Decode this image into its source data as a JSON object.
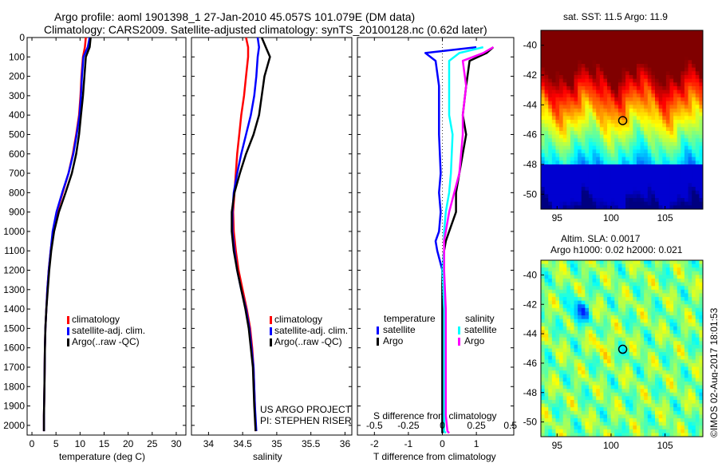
{
  "header": {
    "title_line1": "Argo profile: aoml 1901398_1 27-Jan-2010 45.057S 101.079E (DM data)",
    "title_line2": "Climatology: CARS2009. Satellite-adjusted climatology: synTS_20100128.nc (0.62d later)"
  },
  "credits": {
    "project": "US ARGO PROJECT",
    "pi": "PI: STEPHEN RISER",
    "stamp": "©IMOS 02-Aug-2017 18:01:53"
  },
  "colors": {
    "climatology": "#ff0000",
    "satellite": "#0000ff",
    "argo": "#000000",
    "sal_satellite": "#00ffff",
    "sal_argo": "#ff00ff"
  },
  "chart_data": [
    {
      "type": "line",
      "name": "temperature profile",
      "xlabel": "temperature (deg C)",
      "ylabel": "",
      "xlim": [
        -1,
        32
      ],
      "ylim": [
        2050,
        0
      ],
      "xticks": [
        0,
        5,
        10,
        15,
        20,
        25,
        30
      ],
      "yticks": [
        0,
        100,
        200,
        300,
        400,
        500,
        600,
        700,
        800,
        900,
        1000,
        1100,
        1200,
        1300,
        1400,
        1500,
        1600,
        1700,
        1800,
        1900,
        2000
      ],
      "legend": [
        "climatology",
        "satellite-adj. clim.",
        "Argo(..raw -QC)"
      ],
      "series": [
        {
          "name": "climatology",
          "color": "#ff0000",
          "x": [
            11.2,
            11.0,
            10.6,
            10.3,
            10.1,
            9.8,
            9.2,
            8.5,
            7.6,
            6.4,
            5.2,
            4.4,
            3.9,
            3.5,
            3.2,
            3.0,
            2.8,
            2.7,
            2.6,
            2.5,
            2.5
          ],
          "y": [
            0,
            50,
            100,
            200,
            300,
            400,
            500,
            600,
            700,
            800,
            900,
            1000,
            1100,
            1200,
            1300,
            1400,
            1500,
            1600,
            1800,
            1950,
            2030
          ]
        },
        {
          "name": "satellite-adj. clim.",
          "color": "#0000ff",
          "x": [
            12.0,
            11.6,
            10.7,
            10.4,
            10.2,
            9.9,
            9.3,
            8.6,
            7.6,
            6.3,
            5.1,
            4.3,
            3.9,
            3.5,
            3.2,
            3.0,
            2.8,
            2.7,
            2.6,
            2.5,
            2.5
          ],
          "y": [
            0,
            50,
            100,
            200,
            300,
            400,
            500,
            600,
            700,
            800,
            900,
            1000,
            1100,
            1200,
            1300,
            1400,
            1500,
            1600,
            1800,
            1950,
            2030
          ]
        },
        {
          "name": "Argo(..raw -QC)",
          "color": "#000000",
          "x": [
            12.2,
            12.0,
            11.2,
            10.9,
            10.6,
            10.2,
            9.8,
            9.2,
            8.3,
            7.0,
            5.6,
            4.6,
            4.0,
            3.6,
            3.3,
            3.0,
            2.8,
            2.7,
            2.6,
            2.5,
            2.5
          ],
          "y": [
            0,
            50,
            100,
            200,
            300,
            400,
            500,
            600,
            700,
            800,
            900,
            1000,
            1100,
            1200,
            1300,
            1400,
            1500,
            1600,
            1800,
            1950,
            2030
          ]
        }
      ]
    },
    {
      "type": "line",
      "name": "salinity profile",
      "xlabel": "salinity",
      "ylabel": "",
      "xlim": [
        33.75,
        36.1
      ],
      "ylim": [
        2050,
        0
      ],
      "xticks": [
        34,
        34.5,
        35,
        35.5,
        36
      ],
      "legend": [
        "climatology",
        "satellite-adj. clim.",
        "Argo(..raw -QC)"
      ],
      "series": [
        {
          "name": "climatology",
          "color": "#ff0000",
          "x": [
            34.55,
            34.58,
            34.58,
            34.55,
            34.52,
            34.48,
            34.45,
            34.42,
            34.4,
            34.38,
            34.36,
            34.37,
            34.4,
            34.44,
            34.5,
            34.56,
            34.61,
            34.64,
            34.66,
            34.68,
            34.69
          ],
          "y": [
            0,
            50,
            100,
            200,
            300,
            400,
            500,
            600,
            700,
            800,
            900,
            1000,
            1100,
            1200,
            1300,
            1400,
            1500,
            1600,
            1700,
            1900,
            2030
          ]
        },
        {
          "name": "satellite-adj. clim.",
          "color": "#0000ff",
          "x": [
            34.72,
            34.74,
            34.72,
            34.7,
            34.67,
            34.62,
            34.55,
            34.48,
            34.42,
            34.37,
            34.35,
            34.35,
            34.38,
            34.42,
            34.48,
            34.55,
            34.6,
            34.63,
            34.66,
            34.68,
            34.7
          ],
          "y": [
            0,
            50,
            100,
            200,
            300,
            400,
            500,
            600,
            700,
            800,
            900,
            1000,
            1100,
            1200,
            1300,
            1400,
            1500,
            1600,
            1700,
            1900,
            2030
          ]
        },
        {
          "name": "Argo(..raw -QC)",
          "color": "#000000",
          "x": [
            34.78,
            34.84,
            34.9,
            34.82,
            34.78,
            34.74,
            34.66,
            34.55,
            34.46,
            34.38,
            34.34,
            34.34,
            34.37,
            34.42,
            34.48,
            34.54,
            34.59,
            34.62,
            34.65,
            34.67,
            34.69
          ],
          "y": [
            0,
            50,
            100,
            200,
            300,
            400,
            500,
            600,
            700,
            800,
            900,
            1000,
            1100,
            1200,
            1300,
            1400,
            1500,
            1600,
            1700,
            1900,
            2030
          ]
        }
      ]
    },
    {
      "type": "line",
      "name": "difference from climatology",
      "xlabel": "T difference from climatology",
      "xlabel_top": "S difference from climatology",
      "xlim": [
        -2.5,
        2.1
      ],
      "ylim": [
        2050,
        0
      ],
      "xticks": [
        -2,
        -1,
        0,
        1
      ],
      "xticks_top": [
        "-0.5",
        "-0.25",
        "0",
        "0.25",
        "0.5"
      ],
      "legend_left_title": "temperature",
      "legend_right_title": "salinity",
      "legend": [
        "satellite",
        "Argo",
        "satellite",
        "Argo"
      ],
      "series": [
        {
          "name": "satellite",
          "group": "temperature",
          "color": "#0000ff",
          "x": [
            1.0,
            -0.5,
            -0.2,
            -0.1,
            -0.1,
            -0.1,
            -0.05,
            -0.1,
            -0.05,
            -0.1,
            -0.2,
            -0.15,
            0.0,
            0.0,
            0.0,
            0.0,
            0.0,
            0.0,
            0.0
          ],
          "y": [
            50,
            80,
            120,
            250,
            400,
            500,
            700,
            800,
            900,
            1000,
            1050,
            1100,
            1200,
            1400,
            1600,
            1800,
            1950,
            2030,
            2040
          ]
        },
        {
          "name": "Argo",
          "group": "temperature",
          "color": "#000000",
          "x": [
            1.5,
            1.3,
            0.8,
            0.7,
            0.6,
            0.7,
            0.5,
            0.4,
            0.4,
            0.2,
            0.1,
            0.05,
            0.0,
            0.0,
            0.0,
            0.0,
            0.0,
            0.0,
            0.0
          ],
          "y": [
            50,
            80,
            120,
            250,
            400,
            500,
            700,
            800,
            900,
            1000,
            1050,
            1100,
            1200,
            1400,
            1600,
            1800,
            1950,
            2030,
            2040
          ]
        },
        {
          "name": "satellite",
          "group": "salinity",
          "color": "#00ffff",
          "x": [
            1.2,
            0.5,
            0.2,
            0.2,
            0.2,
            0.3,
            0.25,
            0.2,
            0.1,
            0.05,
            0.05,
            0.05,
            0.0,
            0.05,
            0.05,
            0.05,
            0.05,
            0.05,
            0.1
          ],
          "y": [
            50,
            80,
            120,
            250,
            400,
            500,
            700,
            800,
            900,
            1000,
            1050,
            1100,
            1200,
            1400,
            1600,
            1800,
            1950,
            2030,
            2040
          ]
        },
        {
          "name": "Argo",
          "group": "salinity",
          "color": "#ff00ff",
          "x": [
            1.5,
            1.2,
            0.6,
            0.7,
            0.6,
            0.6,
            0.5,
            0.35,
            0.2,
            0.1,
            0.05,
            0.05,
            0.05,
            0.1,
            0.1,
            0.1,
            0.1,
            0.15,
            0.2
          ],
          "y": [
            50,
            80,
            120,
            250,
            400,
            500,
            700,
            800,
            900,
            1000,
            1050,
            1100,
            1200,
            1400,
            1600,
            1800,
            1950,
            2030,
            2040
          ]
        }
      ]
    },
    {
      "type": "heatmap",
      "name": "sat SST map",
      "title": "sat. SST: 11.5  Argo: 11.9",
      "xlim": [
        93.5,
        108.5
      ],
      "ylim": [
        -51,
        -39
      ],
      "xticks": [
        95,
        100,
        105
      ],
      "yticks": [
        -40,
        -42,
        -44,
        -46,
        -48,
        -50
      ],
      "marker": {
        "lon": 101.079,
        "lat": -45.057
      },
      "colormap": "jet"
    },
    {
      "type": "heatmap",
      "name": "altimetry SLA map",
      "title_line1": "Altim. SLA: 0.0017",
      "title_line2": "Argo h1000: 0.02 h2000: 0.021",
      "xlim": [
        93.5,
        108.5
      ],
      "ylim": [
        -51,
        -39
      ],
      "xticks": [
        95,
        100,
        105
      ],
      "yticks": [
        -40,
        -42,
        -44,
        -46,
        -48,
        -50
      ],
      "marker": {
        "lon": 101.079,
        "lat": -45.057
      },
      "colormap": "jet"
    }
  ]
}
